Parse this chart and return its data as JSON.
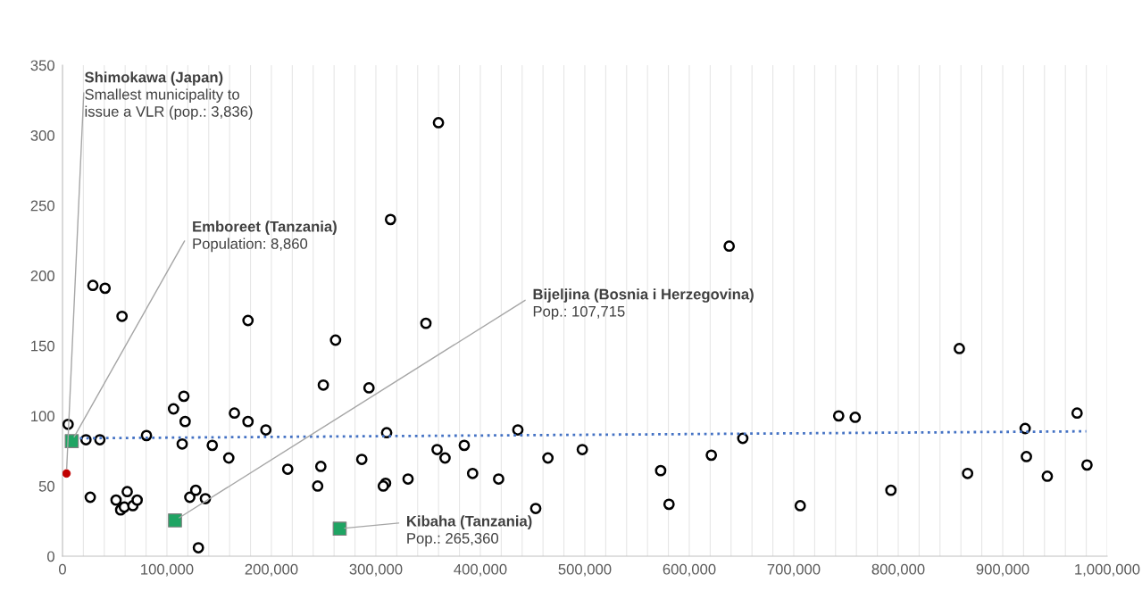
{
  "chart_data": {
    "type": "scatter",
    "xlim": [
      0,
      1000000
    ],
    "ylim": [
      0,
      350
    ],
    "xticks": [
      0,
      {
        "value": 20000,
        "label": null
      },
      {
        "value": 40000,
        "label": null
      },
      {
        "value": 60000,
        "label": null
      },
      {
        "value": 80000,
        "label": null
      },
      {
        "value": 100000,
        "label": "100,000"
      },
      {
        "value": 120000,
        "label": null
      },
      {
        "value": 140000,
        "label": null
      },
      {
        "value": 160000,
        "label": null
      },
      {
        "value": 180000,
        "label": null
      },
      {
        "value": 200000,
        "label": "200,000"
      },
      {
        "value": 220000,
        "label": null
      },
      {
        "value": 240000,
        "label": null
      },
      {
        "value": 260000,
        "label": null
      },
      {
        "value": 280000,
        "label": null
      },
      {
        "value": 300000,
        "label": "300,000"
      },
      {
        "value": 320000,
        "label": null
      },
      {
        "value": 340000,
        "label": null
      },
      {
        "value": 360000,
        "label": null
      },
      {
        "value": 380000,
        "label": null
      },
      {
        "value": 400000,
        "label": "400,000"
      },
      {
        "value": 420000,
        "label": null
      },
      {
        "value": 440000,
        "label": null
      },
      {
        "value": 460000,
        "label": null
      },
      {
        "value": 480000,
        "label": null
      },
      {
        "value": 500000,
        "label": "500,000"
      },
      {
        "value": 520000,
        "label": null
      },
      {
        "value": 540000,
        "label": null
      },
      {
        "value": 560000,
        "label": null
      },
      {
        "value": 580000,
        "label": null
      },
      {
        "value": 600000,
        "label": "600,000"
      },
      {
        "value": 620000,
        "label": null
      },
      {
        "value": 640000,
        "label": null
      },
      {
        "value": 660000,
        "label": null
      },
      {
        "value": 680000,
        "label": null
      },
      {
        "value": 700000,
        "label": "700,000"
      },
      {
        "value": 720000,
        "label": null
      },
      {
        "value": 740000,
        "label": null
      },
      {
        "value": 760000,
        "label": null
      },
      {
        "value": 780000,
        "label": null
      },
      {
        "value": 800000,
        "label": "800,000"
      },
      {
        "value": 820000,
        "label": null
      },
      {
        "value": 840000,
        "label": null
      },
      {
        "value": 860000,
        "label": null
      },
      {
        "value": 880000,
        "label": null
      },
      {
        "value": 900000,
        "label": "900,000"
      },
      {
        "value": 920000,
        "label": null
      },
      {
        "value": 940000,
        "label": null
      },
      {
        "value": 960000,
        "label": null
      },
      {
        "value": 980000,
        "label": null
      },
      {
        "value": 1000000,
        "label": "1,000,000"
      }
    ],
    "yticks": [
      0,
      50,
      100,
      150,
      200,
      250,
      300,
      350
    ],
    "grid": "x",
    "legend": false,
    "series": [
      {
        "marker": "circle",
        "color": "#000000",
        "x": [
          5400,
          22500,
          35800,
          26600,
          29100,
          40800,
          57000,
          51300,
          55700,
          59200,
          62000,
          67400,
          71500,
          80400,
          106300,
          116200,
          117400,
          114600,
          121900,
          127600,
          136800,
          130100,
          143400,
          159200,
          164600,
          177600,
          177600,
          194700,
          215600,
          261400,
          249700,
          247300,
          244300,
          286500,
          293400,
          310300,
          309300,
          307100,
          314000,
          359900,
          347900,
          330800,
          358600,
          366200,
          384600,
          392600,
          417500,
          435900,
          453000,
          464700,
          497600,
          572600,
          580600,
          621100,
          638200,
          651200,
          706200,
          743000,
          758800,
          793000,
          858500,
          866400,
          921500,
          922700,
          942700,
          971200,
          980700
        ],
        "values": [
          94,
          83,
          83,
          42,
          193,
          191,
          171,
          40,
          33,
          35,
          46,
          36,
          40,
          86,
          105,
          114,
          96,
          80,
          42,
          47,
          41,
          6,
          79,
          70,
          102,
          168,
          96,
          90,
          62,
          154,
          122,
          64,
          50,
          69,
          120,
          88,
          52,
          50,
          240,
          309,
          166,
          55,
          76,
          70,
          79,
          59,
          55,
          90,
          34,
          70,
          76,
          61,
          37,
          72,
          221,
          84,
          36,
          100,
          99,
          47,
          148,
          59,
          91,
          71,
          57,
          102,
          65
        ]
      },
      {
        "type": "line",
        "marker": "none",
        "line_style": "dotted",
        "color": "#4472c4",
        "x": [
          4000,
          980000
        ],
        "values": [
          84,
          89
        ]
      },
      {
        "marker": "square",
        "color": "#1fa463",
        "x": [
          8860,
          107715,
          265360
        ],
        "values": [
          82,
          25.5,
          19.6
        ]
      },
      {
        "marker": "circle",
        "color": "#c00000",
        "x": [
          3836
        ],
        "values": [
          59
        ]
      }
    ],
    "annotations": [
      {
        "text": "Shimokawa (Japan)",
        "x": 3836,
        "y": 59
      },
      "Smallest municipality to\nissue a VLR (pop.: 3,836)",
      {
        "text": "Emboreet (Tanzania)",
        "x": 8860,
        "y": 82
      },
      "Population: 8,860",
      {
        "text": "Bijeljina (Bosnia i Herzegovina)",
        "x": 107715,
        "y": 25.5
      },
      "Pop.: 107,715",
      {
        "text": "Kibaha (Tanzania)",
        "x": 265360,
        "y": 19.6
      },
      "Pop.: 265,360"
    ]
  }
}
